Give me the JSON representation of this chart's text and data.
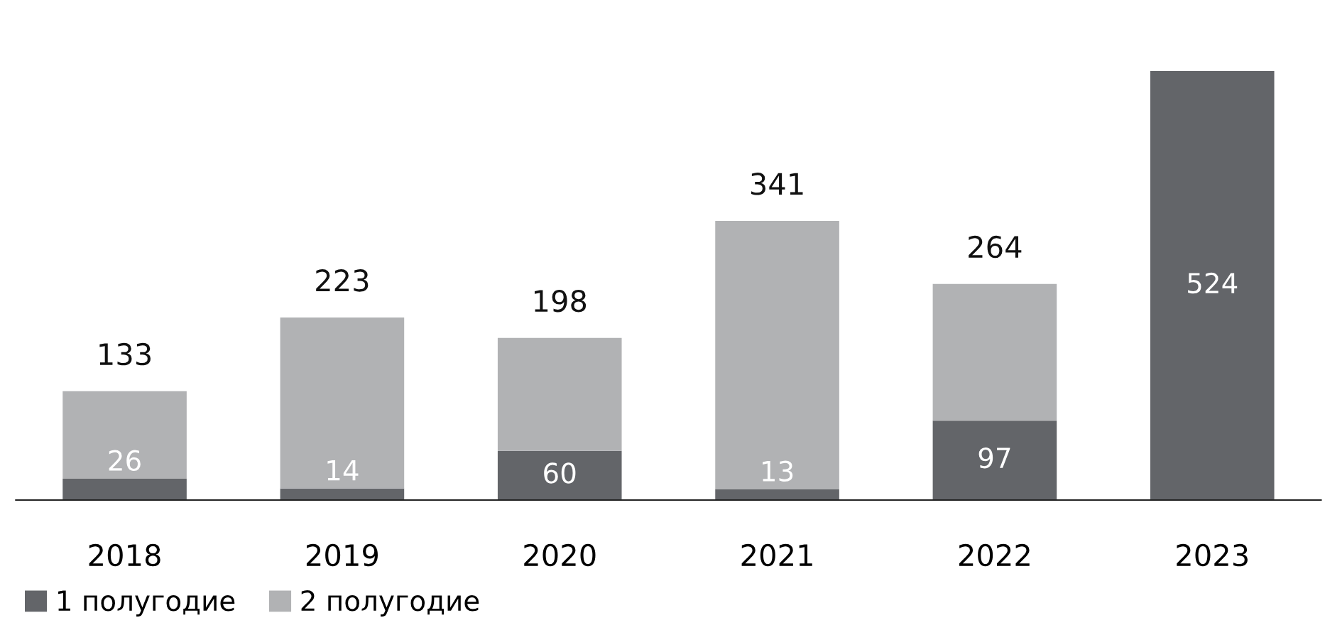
{
  "chart_data": {
    "type": "bar",
    "stacked": true,
    "categories": [
      "2018",
      "2019",
      "2020",
      "2021",
      "2022",
      "2023"
    ],
    "series": [
      {
        "name": "1 полугодие",
        "color": "#636569",
        "values": [
          26,
          14,
          60,
          13,
          97,
          524
        ],
        "value_labels": [
          "26",
          "14",
          "60",
          "13",
          "97",
          "524"
        ]
      },
      {
        "name": "2 полугодие",
        "color": "#b1b2b4",
        "values": [
          107,
          209,
          138,
          328,
          167,
          null
        ]
      }
    ],
    "totals": [
      "133",
      "223",
      "198",
      "341",
      "264",
      null
    ],
    "ylim": [
      0,
      524
    ],
    "grid": false,
    "legend": "bottom left"
  }
}
